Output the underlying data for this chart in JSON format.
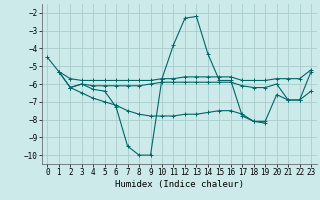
{
  "bg_color": "#cceaea",
  "grid_color": "#aacccc",
  "line_color": "#006666",
  "xlabel": "Humidex (Indice chaleur)",
  "xlim": [
    -0.5,
    23.5
  ],
  "ylim": [
    -10.5,
    -1.5
  ],
  "yticks": [
    -10,
    -9,
    -8,
    -7,
    -6,
    -5,
    -4,
    -3,
    -2
  ],
  "xticks": [
    0,
    1,
    2,
    3,
    4,
    5,
    6,
    7,
    8,
    9,
    10,
    11,
    12,
    13,
    14,
    15,
    16,
    17,
    18,
    19,
    20,
    21,
    22,
    23
  ],
  "lines": [
    {
      "x": [
        0,
        1,
        2,
        3,
        4,
        5,
        6,
        7,
        8,
        9,
        10,
        11,
        12,
        13,
        14,
        15,
        16,
        17,
        18,
        19,
        20,
        21,
        22,
        23
      ],
      "y": [
        -4.5,
        -5.3,
        -6.2,
        -6.0,
        -6.3,
        -6.4,
        -7.3,
        -9.5,
        -10.0,
        -10.0,
        -5.7,
        -3.8,
        -2.3,
        -2.2,
        -4.3,
        -5.8,
        -5.8,
        -7.8,
        -8.1,
        -8.1,
        -6.6,
        -6.9,
        -6.9,
        -5.3
      ]
    },
    {
      "x": [
        1,
        2,
        3,
        4,
        5,
        6,
        7,
        8,
        9,
        10,
        11,
        12,
        13,
        14,
        15,
        16,
        17,
        18,
        19,
        20,
        21,
        22,
        23
      ],
      "y": [
        -5.3,
        -5.7,
        -5.8,
        -5.8,
        -5.8,
        -5.8,
        -5.8,
        -5.8,
        -5.8,
        -5.7,
        -5.7,
        -5.6,
        -5.6,
        -5.6,
        -5.6,
        -5.6,
        -5.8,
        -5.8,
        -5.8,
        -5.7,
        -5.7,
        -5.7,
        -5.2
      ]
    },
    {
      "x": [
        1,
        2,
        3,
        4,
        5,
        6,
        7,
        8,
        9,
        10,
        11,
        12,
        13,
        14,
        15,
        16,
        17,
        18,
        19,
        20,
        21,
        22,
        23
      ],
      "y": [
        -5.3,
        -6.2,
        -6.0,
        -6.1,
        -6.1,
        -6.1,
        -6.1,
        -6.1,
        -6.0,
        -5.9,
        -5.9,
        -5.9,
        -5.9,
        -5.9,
        -5.9,
        -5.9,
        -6.1,
        -6.2,
        -6.2,
        -6.0,
        -6.9,
        -6.9,
        -6.4
      ]
    },
    {
      "x": [
        2,
        3,
        4,
        5,
        6,
        7,
        8,
        9,
        10,
        11,
        12,
        13,
        14,
        15,
        16,
        17,
        18,
        19
      ],
      "y": [
        -6.2,
        -6.5,
        -6.8,
        -7.0,
        -7.2,
        -7.5,
        -7.7,
        -7.8,
        -7.8,
        -7.8,
        -7.7,
        -7.7,
        -7.6,
        -7.5,
        -7.5,
        -7.7,
        -8.1,
        -8.2
      ]
    }
  ]
}
